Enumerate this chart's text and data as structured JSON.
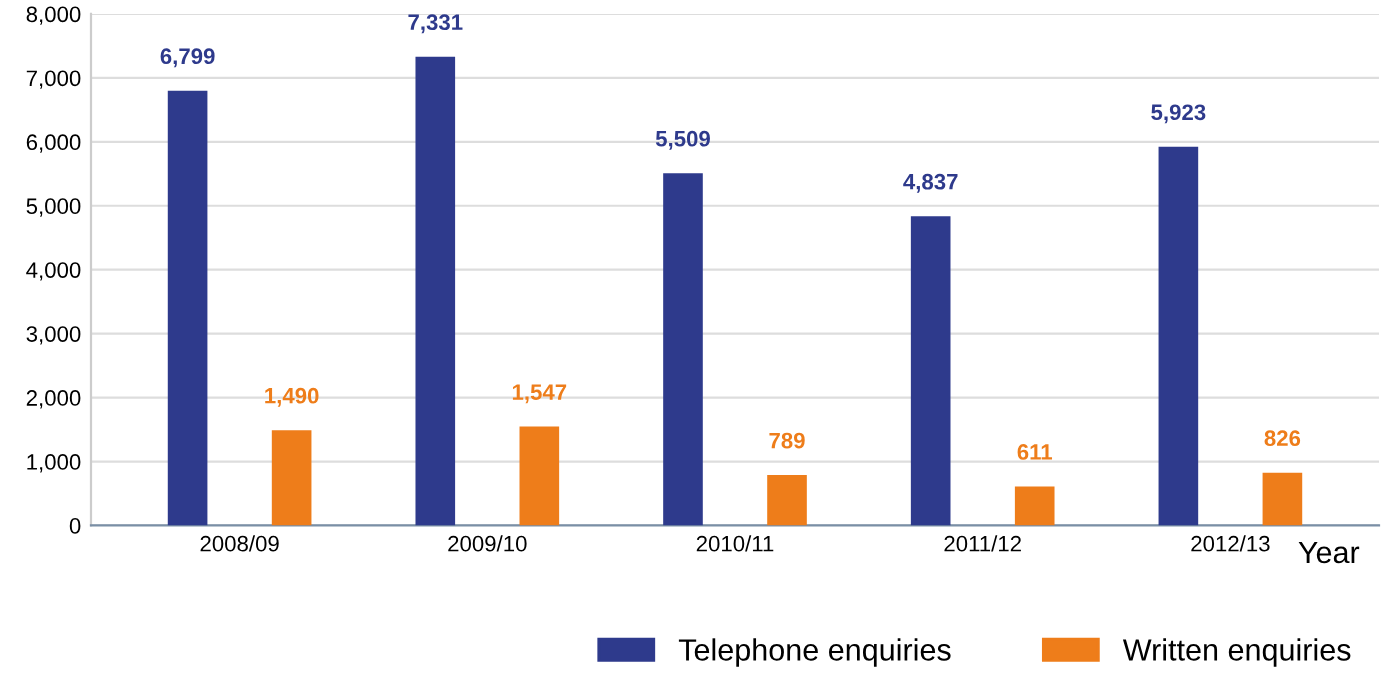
{
  "chart_data": {
    "type": "bar",
    "xlabel": "Year",
    "categories": [
      "2008/09",
      "2009/10",
      "2010/11",
      "2011/12",
      "2012/13"
    ],
    "series": [
      {
        "name": "Telephone enquiries",
        "color": "#2e3a8c",
        "values": [
          6799,
          7331,
          5509,
          4837,
          5923
        ]
      },
      {
        "name": "Written enquiries",
        "color": "#ee7d1a",
        "values": [
          1490,
          1547,
          789,
          611,
          826
        ]
      }
    ],
    "ylim": [
      0,
      8000
    ],
    "yticks": [
      0,
      {
        "value": 1000,
        "label": "1,000"
      },
      {
        "value": 2000,
        "label": "2,000"
      },
      {
        "value": 3000,
        "label": "3,000"
      },
      {
        "value": 4000,
        "label": "4,000"
      },
      {
        "value": 5000,
        "label": "5,000"
      },
      {
        "value": 6000,
        "label": "6,000"
      },
      {
        "value": 7000,
        "label": "7,000"
      },
      {
        "value": 8000,
        "label": "8,000"
      }
    ],
    "value_labels": [
      [
        "6,799",
        "7,331",
        "5,509",
        "4,837",
        "5,923"
      ],
      [
        "1,490",
        "1,547",
        "789",
        "611",
        "826"
      ]
    ],
    "grid": "y",
    "legend": "bottom right"
  }
}
